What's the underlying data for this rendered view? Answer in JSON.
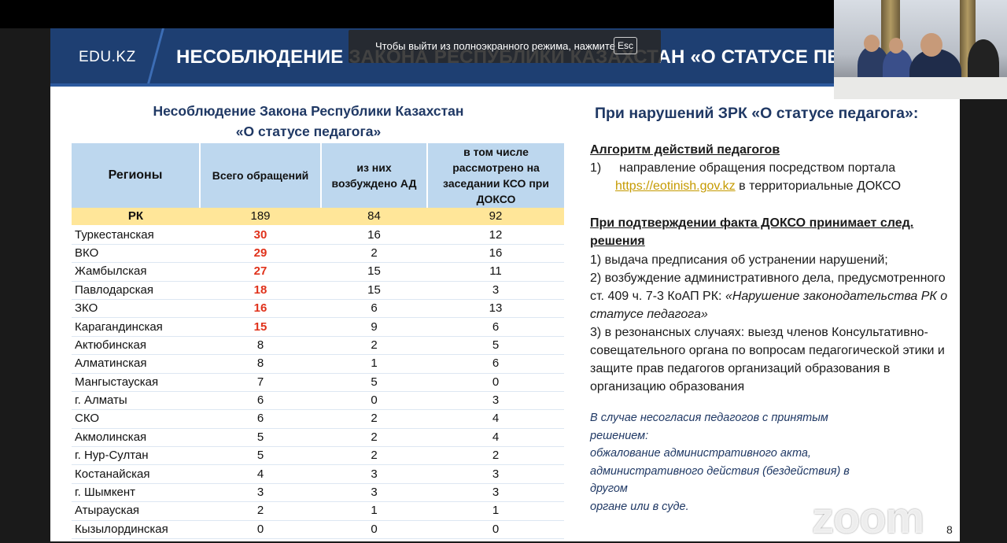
{
  "slide": {
    "logo": "EDU.KZ",
    "title": "НЕСОБЛЮДЕНИЕ ЗАКОНА РЕСПУБЛИКИ КАЗАХСТАН «О СТАТУСЕ ПЕДАГОГА»",
    "page_number": "8"
  },
  "fullscreen_toast": {
    "message": "Чтобы выйти из полноэкранного режима, нажмите",
    "key": "Esc"
  },
  "left": {
    "title_line1": "Несоблюдение Закона Республики Казахстан",
    "title_line2": "«О статусе педагога»"
  },
  "table": {
    "headers": [
      "Регионы",
      "Всего обращений",
      "из них возбуждено АД",
      "в том числе рассмотрено на заседании КСО при ДОКСО"
    ],
    "total": {
      "region": "РК",
      "total": "189",
      "ad": "84",
      "kso": "92"
    },
    "rows": [
      {
        "region": "Туркестанская",
        "total": "30",
        "ad": "16",
        "kso": "12"
      },
      {
        "region": "ВКО",
        "total": "29",
        "ad": "2",
        "kso": "16"
      },
      {
        "region": "Жамбылская",
        "total": "27",
        "ad": "15",
        "kso": "11"
      },
      {
        "region": "Павлодарская",
        "total": "18",
        "ad": "15",
        "kso": "3"
      },
      {
        "region": "ЗКО",
        "total": "16",
        "ad": "6",
        "kso": "13"
      },
      {
        "region": "Карагандинская",
        "total": "15",
        "ad": "9",
        "kso": "6"
      },
      {
        "region": "Актюбинская",
        "total": "8",
        "ad": "2",
        "kso": "5"
      },
      {
        "region": "Алматинская",
        "total": "8",
        "ad": "1",
        "kso": "6"
      },
      {
        "region": "Мангыстауская",
        "total": "7",
        "ad": "5",
        "kso": "0"
      },
      {
        "region": "г. Алматы",
        "total": "6",
        "ad": "0",
        "kso": "3"
      },
      {
        "region": "СКО",
        "total": "6",
        "ad": "2",
        "kso": "4"
      },
      {
        "region": "Акмолинская",
        "total": "5",
        "ad": "2",
        "kso": "4"
      },
      {
        "region": "г. Нур-Султан",
        "total": "5",
        "ad": "2",
        "kso": "2"
      },
      {
        "region": "Костанайская",
        "total": "4",
        "ad": "3",
        "kso": "3"
      },
      {
        "region": "г. Шымкент",
        "total": "3",
        "ad": "3",
        "kso": "3"
      },
      {
        "region": "Атырауская",
        "total": "2",
        "ad": "1",
        "kso": "1"
      },
      {
        "region": "Кызылординская",
        "total": "0",
        "ad": "0",
        "kso": "0"
      }
    ],
    "highlight_color": "#e0321b"
  },
  "right": {
    "title": "При нарушений ЗРК «О статусе педагога»:",
    "algo_heading": "Алгоритм действий педагогов",
    "algo_item_num": "1)",
    "algo_item_text": "направление обращения посредством портала",
    "algo_link": "https://eotinish.gov.kz",
    "algo_item_tail": "в территориальные ДОКСО",
    "confirm_heading_line1": "При подтверждении факта ДОКСО принимает след.",
    "confirm_heading_line2": "решения",
    "decision1": "1) выдача предписания об устранении нарушений;",
    "decision2_line1": "2) возбуждение административного дела, предусмотренного",
    "decision2_line2_prefix": "ст. 409 ч. 7-3 КоАП РК:",
    "decision2_line2_italic": "«Нарушение законодательства РК о",
    "decision2_line3_italic": "статусе педагога»",
    "decision3_line1": "3) в резонансных случаях: выезд членов Консультативно-",
    "decision3_line2": "совещательного органа по вопросам педагогической этики и",
    "decision3_line3": "защите прав педагогов организаций образования в",
    "decision3_line4": "организацию образования",
    "note_line1": "В случае несогласия педагогов с принятым решением:",
    "note_line2": "обжалование административного акта,",
    "note_line3": "административного действия (бездействия) в другом",
    "note_line4": "органе или в суде."
  },
  "watermark": "zoom"
}
